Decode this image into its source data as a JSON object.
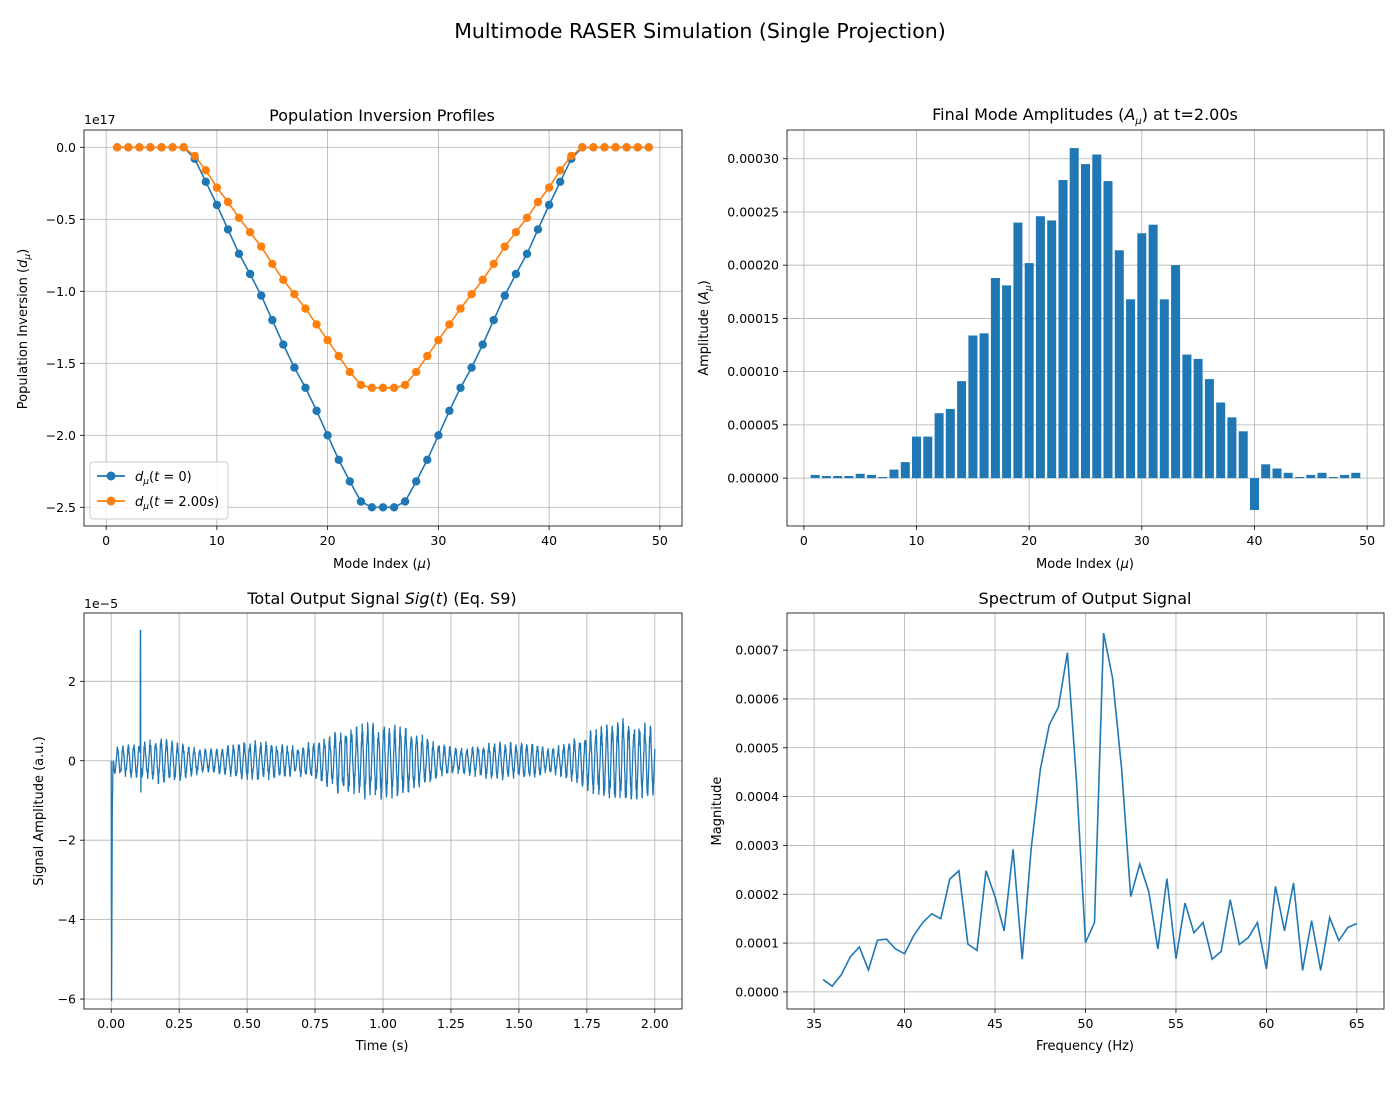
{
  "suptitle": "Multimode RASER Simulation (Single Projection)",
  "colors": {
    "blue": "#1f77b4",
    "orange": "#ff7f0e",
    "grid": "#b0b0b0"
  },
  "chart_data": [
    {
      "type": "line",
      "title": "Population Inversion Profiles",
      "xlabel": "Mode Index (μ)",
      "ylabel": "Population Inversion (d_μ)",
      "offset_label": "1e17",
      "xlim": [
        -2,
        52
      ],
      "ylim": [
        -2.63,
        0.12
      ],
      "xticks": [
        0,
        10,
        20,
        30,
        40,
        50
      ],
      "yticks": [
        0,
        -0.5,
        -1,
        -1.5,
        -2,
        -2.5
      ],
      "ytick_labels": [
        "0.0",
        "−0.5",
        "−1.0",
        "−1.5",
        "−2.0",
        "−2.5"
      ],
      "grid": true,
      "legend_position": "lower left",
      "x": [
        1,
        2,
        3,
        4,
        5,
        6,
        7,
        8,
        9,
        10,
        11,
        12,
        13,
        14,
        15,
        16,
        17,
        18,
        19,
        20,
        21,
        22,
        23,
        24,
        25,
        26,
        27,
        28,
        29,
        30,
        31,
        32,
        33,
        34,
        35,
        36,
        37,
        38,
        39,
        40,
        41,
        42,
        43,
        44,
        45,
        46,
        47,
        48,
        49
      ],
      "series": [
        {
          "name": "d_μ(t = 0)",
          "color": "#1f77b4",
          "values": [
            0,
            0,
            0,
            0,
            0,
            0,
            0,
            -0.08,
            -0.24,
            -0.4,
            -0.57,
            -0.74,
            -0.88,
            -1.03,
            -1.2,
            -1.37,
            -1.53,
            -1.67,
            -1.83,
            -2.0,
            -2.17,
            -2.32,
            -2.46,
            -2.5,
            -2.5,
            -2.5,
            -2.46,
            -2.32,
            -2.17,
            -2.0,
            -1.83,
            -1.67,
            -1.53,
            -1.37,
            -1.2,
            -1.03,
            -0.88,
            -0.74,
            -0.57,
            -0.4,
            -0.24,
            -0.08,
            0,
            0,
            0,
            0,
            0,
            0,
            0
          ]
        },
        {
          "name": "d_μ(t = 2.00s)",
          "color": "#ff7f0e",
          "values": [
            0,
            0,
            0,
            0,
            0,
            0,
            0,
            -0.06,
            -0.16,
            -0.28,
            -0.38,
            -0.49,
            -0.59,
            -0.69,
            -0.81,
            -0.92,
            -1.02,
            -1.12,
            -1.23,
            -1.34,
            -1.45,
            -1.56,
            -1.65,
            -1.67,
            -1.67,
            -1.67,
            -1.65,
            -1.56,
            -1.45,
            -1.34,
            -1.23,
            -1.12,
            -1.02,
            -0.92,
            -0.81,
            -0.69,
            -0.59,
            -0.49,
            -0.38,
            -0.28,
            -0.16,
            -0.06,
            0,
            0,
            0,
            0,
            0,
            0,
            0
          ]
        }
      ]
    },
    {
      "type": "bar",
      "title": "Final Mode Amplitudes (A_μ) at t=2.00s",
      "xlabel": "Mode Index (μ)",
      "ylabel": "Amplitude (A_μ)",
      "xlim": [
        -1.5,
        51.5
      ],
      "ylim": [
        -4.5e-05,
        0.000327
      ],
      "xticks": [
        0,
        10,
        20,
        30,
        40,
        50
      ],
      "yticks": [
        0,
        5e-05,
        0.0001,
        0.00015,
        0.0002,
        0.00025,
        0.0003
      ],
      "ytick_labels": [
        "0.00000",
        "0.00005",
        "0.00010",
        "0.00015",
        "0.00020",
        "0.00025",
        "0.00030"
      ],
      "grid": true,
      "categories": [
        1,
        2,
        3,
        4,
        5,
        6,
        7,
        8,
        9,
        10,
        11,
        12,
        13,
        14,
        15,
        16,
        17,
        18,
        19,
        20,
        21,
        22,
        23,
        24,
        25,
        26,
        27,
        28,
        29,
        30,
        31,
        32,
        33,
        34,
        35,
        36,
        37,
        38,
        39,
        40,
        41,
        42,
        43,
        44,
        45,
        46,
        47,
        48,
        49
      ],
      "values": [
        3e-06,
        2e-06,
        2e-06,
        2e-06,
        4e-06,
        3e-06,
        1e-06,
        8e-06,
        1.5e-05,
        3.9e-05,
        3.9e-05,
        6.1e-05,
        6.5e-05,
        9.1e-05,
        0.000134,
        0.000136,
        0.000188,
        0.000181,
        0.00024,
        0.000202,
        0.000246,
        0.000242,
        0.00028,
        0.00031,
        0.000295,
        0.000304,
        0.000279,
        0.000214,
        0.000168,
        0.00023,
        0.000238,
        0.000168,
        0.0002,
        0.000116,
        0.000112,
        9.3e-05,
        7.1e-05,
        5.7e-05,
        4.4e-05,
        -3e-05,
        1.3e-05,
        9e-06,
        5e-06,
        1e-06,
        3e-06,
        5e-06,
        1e-06,
        3e-06,
        5e-06
      ]
    },
    {
      "type": "line",
      "title": "Total Output Signal Sig(t) (Eq. S9)",
      "xlabel": "Time (s)",
      "ylabel": "Signal Amplitude (a.u.)",
      "offset_label": "1e−5",
      "xlim": [
        -0.1,
        2.1
      ],
      "ylim": [
        -6.25,
        3.72
      ],
      "xticks": [
        0,
        0.25,
        0.5,
        0.75,
        1,
        1.25,
        1.5,
        1.75,
        2
      ],
      "xtick_labels": [
        "0.00",
        "0.25",
        "0.50",
        "0.75",
        "1.00",
        "1.25",
        "1.50",
        "1.75",
        "2.00"
      ],
      "yticks": [
        2,
        0,
        -2,
        -4,
        -6
      ],
      "ytick_labels": [
        "2",
        "0",
        "−2",
        "−4",
        "−6"
      ],
      "grid": true,
      "features": {
        "initial_dip": -6.05,
        "spike_time": 0.108,
        "spike_peak": 3.28,
        "spike_trough": -0.8,
        "t_end": 2.0
      },
      "envelope": {
        "t": [
          0.01,
          0.05,
          0.1,
          0.15,
          0.2,
          0.3,
          0.4,
          0.5,
          0.6,
          0.7,
          0.8,
          0.9,
          1.0,
          1.1,
          1.2,
          1.3,
          1.4,
          1.5,
          1.55,
          1.6,
          1.7,
          1.8,
          1.9,
          2.0
        ],
        "amp": [
          0.3,
          0.35,
          0.4,
          0.5,
          0.65,
          0.8,
          0.8,
          0.85,
          0.95,
          1.0,
          0.95,
          0.85,
          0.8,
          0.9,
          0.95,
          0.85,
          0.8,
          0.85,
          1.2,
          0.85,
          0.8,
          0.85,
          0.9,
          0.85
        ]
      }
    },
    {
      "type": "line",
      "title": "Spectrum of Output Signal",
      "xlabel": "Frequency (Hz)",
      "ylabel": "Magnitude",
      "xlim": [
        33.5,
        66.5
      ],
      "ylim": [
        -3.5e-05,
        0.000776
      ],
      "xticks": [
        35,
        40,
        45,
        50,
        55,
        60,
        65
      ],
      "yticks": [
        0,
        0.0001,
        0.0002,
        0.0003,
        0.0004,
        0.0005,
        0.0006,
        0.0007
      ],
      "ytick_labels": [
        "0.0000",
        "0.0001",
        "0.0002",
        "0.0003",
        "0.0004",
        "0.0005",
        "0.0006",
        "0.0007"
      ],
      "grid": true,
      "x": [
        35.5,
        36,
        36.5,
        37,
        37.5,
        38,
        38.5,
        39,
        39.5,
        40,
        40.5,
        41,
        41.5,
        42,
        42.5,
        43,
        43.5,
        44,
        44.5,
        45,
        45.5,
        46,
        46.5,
        47,
        47.5,
        48,
        48.5,
        49,
        49.5,
        50,
        50.5,
        51,
        51.5,
        52,
        52.5,
        53,
        53.5,
        54,
        54.5,
        55,
        55.5,
        56,
        56.5,
        57,
        57.5,
        58,
        58.5,
        59,
        59.5,
        60,
        60.5,
        61,
        61.5,
        62,
        62.5,
        63,
        63.5,
        64,
        64.5,
        65
      ],
      "y": [
        2.5e-05,
        1.2e-05,
        3.5e-05,
        7.2e-05,
        9.2e-05,
        4.5e-05,
        0.000106,
        0.000108,
        8.8e-05,
        7.8e-05,
        0.000115,
        0.000142,
        0.00016,
        0.00015,
        0.000231,
        0.000248,
        9.8e-05,
        8.5e-05,
        0.000248,
        0.000195,
        0.000125,
        0.000292,
        6.7e-05,
        0.000294,
        0.000455,
        0.000547,
        0.000583,
        0.000695,
        0.000432,
        0.000101,
        0.000142,
        0.000735,
        0.000642,
        0.000455,
        0.000195,
        0.000262,
        0.000205,
        8.8e-05,
        0.000232,
        6.8e-05,
        0.000182,
        0.000121,
        0.000142,
        6.7e-05,
        8.3e-05,
        0.000189,
        9.7e-05,
        0.000111,
        0.000142,
        4.7e-05,
        0.000216,
        0.000125,
        0.000223,
        4.4e-05,
        0.000146,
        4.4e-05,
        0.000152,
        0.000105,
        0.000132,
        0.00014
      ]
    }
  ]
}
